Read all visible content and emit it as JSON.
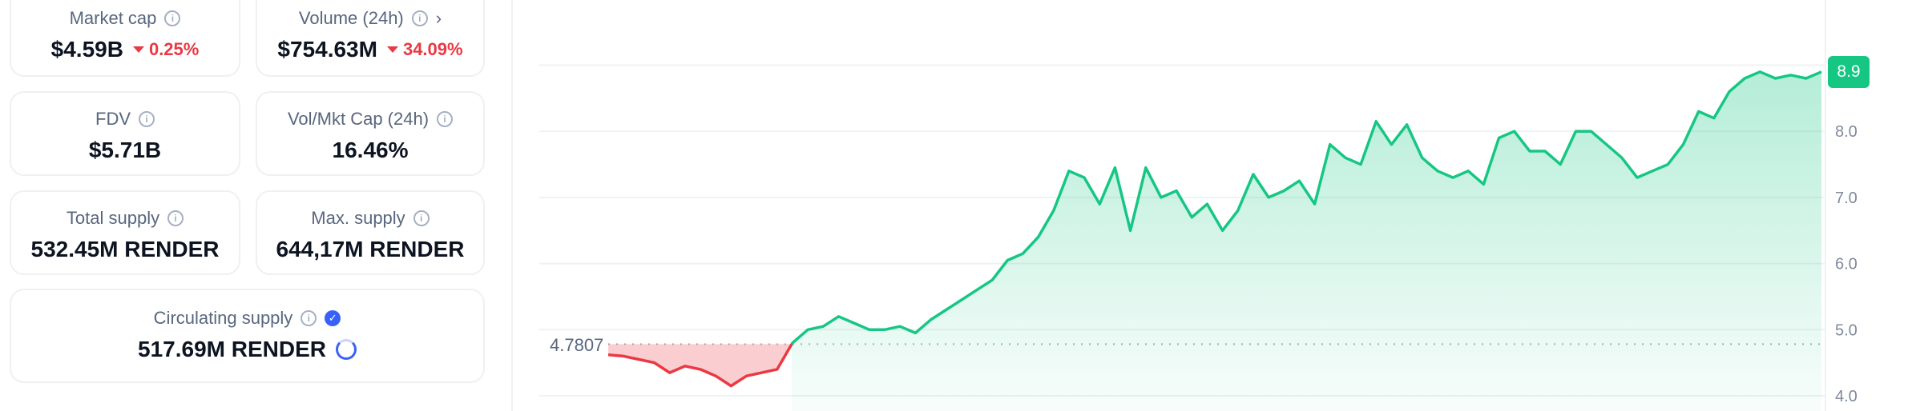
{
  "stats": {
    "market_cap": {
      "label": "Market cap",
      "value": "$4.59B",
      "change": "0.25%",
      "direction": "down"
    },
    "volume": {
      "label": "Volume (24h)",
      "value": "$754.63M",
      "change": "34.09%",
      "direction": "down"
    },
    "fdv": {
      "label": "FDV",
      "value": "$5.71B"
    },
    "vol_mkt_cap": {
      "label": "Vol/Mkt Cap (24h)",
      "value": "16.46%"
    },
    "total_supply": {
      "label": "Total supply",
      "value": "532.45M RENDER"
    },
    "max_supply": {
      "label": "Max. supply",
      "value": "644,17M RENDER"
    },
    "circulating_supply": {
      "label": "Circulating supply",
      "value": "517.69M RENDER"
    }
  },
  "icons": {
    "info": "i",
    "chevron": "›",
    "verified": "✓"
  },
  "colors": {
    "up": "#16c784",
    "down": "#ea3943",
    "accent": "#3861fb"
  },
  "chart_data": {
    "type": "line",
    "reference_value": 4.7807,
    "reference_label": "4.7807",
    "current_value": 8.9,
    "current_label": "8.9",
    "y_ticks": [
      "8.0",
      "7.0",
      "6.0",
      "5.0",
      "4.0"
    ],
    "ylim": [
      4.0,
      9.0
    ],
    "grid": true,
    "values": [
      4.62,
      4.6,
      4.55,
      4.5,
      4.35,
      4.45,
      4.4,
      4.3,
      4.15,
      4.3,
      4.35,
      4.4,
      4.8,
      5.0,
      5.05,
      5.2,
      5.1,
      5.0,
      5.0,
      5.05,
      4.95,
      5.15,
      5.3,
      5.45,
      5.6,
      5.75,
      6.05,
      6.15,
      6.4,
      6.8,
      7.4,
      7.3,
      6.9,
      7.45,
      6.5,
      7.45,
      7.0,
      7.1,
      6.7,
      6.9,
      6.5,
      6.8,
      7.35,
      7.0,
      7.1,
      7.25,
      6.9,
      7.8,
      7.6,
      7.5,
      8.15,
      7.8,
      8.1,
      7.6,
      7.4,
      7.3,
      7.4,
      7.2,
      7.9,
      8.0,
      7.7,
      7.7,
      7.5,
      8.0,
      8.0,
      7.8,
      7.6,
      7.3,
      7.4,
      7.5,
      7.8,
      8.3,
      8.2,
      8.6,
      8.8,
      8.9,
      8.8,
      8.85,
      8.8,
      8.9
    ]
  }
}
